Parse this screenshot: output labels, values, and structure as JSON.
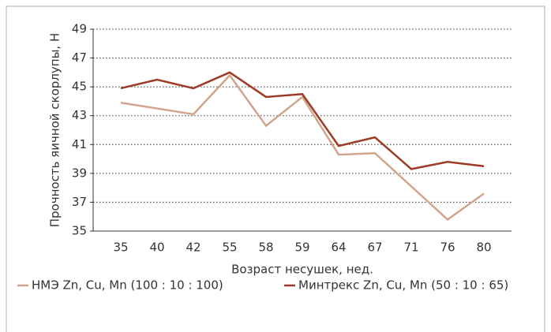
{
  "chart_data": {
    "type": "line",
    "y_label": "Прочность яичной скорлупы, Н",
    "x_label": "Возраст несушек, нед.",
    "categories": [
      35,
      40,
      42,
      55,
      58,
      59,
      64,
      67,
      71,
      76,
      80
    ],
    "series": [
      {
        "name": "НМЭ Zn, Cu, Mn (100 : 10 : 100)",
        "color": "#d2a48c",
        "values": [
          43.9,
          43.5,
          43.1,
          45.8,
          42.3,
          44.3,
          40.3,
          40.4,
          38.1,
          35.8,
          37.6
        ]
      },
      {
        "name": "Минтрекс Zn, Cu, Mn (50 : 10 : 65)",
        "color": "#9e3b24",
        "values": [
          44.9,
          45.5,
          44.9,
          46.0,
          44.3,
          44.5,
          40.9,
          41.5,
          39.3,
          39.8,
          39.5
        ]
      }
    ],
    "ylim": [
      35,
      49
    ],
    "yticks": [
      35,
      37,
      39,
      41,
      43,
      45,
      47,
      49
    ],
    "grid": true
  }
}
